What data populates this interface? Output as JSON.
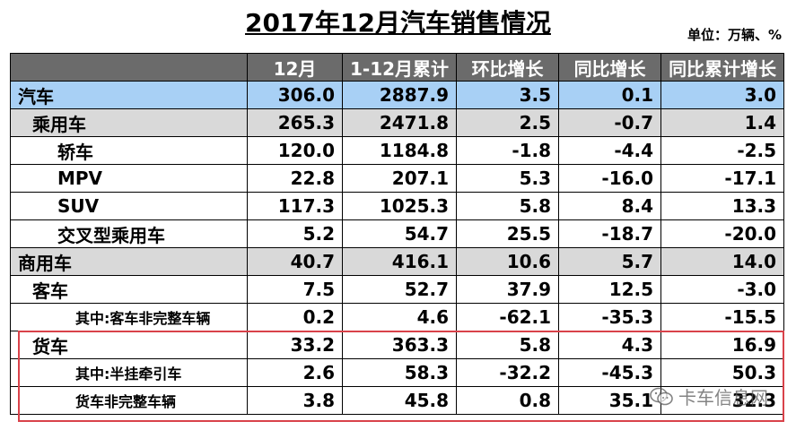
{
  "title": "2017年12月汽车销售情况",
  "unit": "单位：万辆、%",
  "table": {
    "headers": [
      "",
      "12月",
      "1-12月累计",
      "环比增长",
      "同比增长",
      "同比累计增长"
    ],
    "rows": [
      {
        "name": "汽车",
        "values": [
          "306.0",
          "2887.9",
          "3.5",
          "0.1",
          "3.0"
        ]
      },
      {
        "name": "乘用车",
        "values": [
          "265.3",
          "2471.8",
          "2.5",
          "-0.7",
          "1.4"
        ]
      },
      {
        "name": "轿车",
        "values": [
          "120.0",
          "1184.8",
          "-1.8",
          "-4.4",
          "-2.5"
        ]
      },
      {
        "name": "MPV",
        "values": [
          "22.8",
          "207.1",
          "5.3",
          "-16.0",
          "-17.1"
        ]
      },
      {
        "name": "SUV",
        "values": [
          "117.3",
          "1025.3",
          "5.8",
          "8.4",
          "13.3"
        ]
      },
      {
        "name": "交叉型乘用车",
        "values": [
          "5.2",
          "54.7",
          "25.5",
          "-18.7",
          "-20.0"
        ]
      },
      {
        "name": "商用车",
        "values": [
          "40.7",
          "416.1",
          "10.6",
          "5.7",
          "14.0"
        ]
      },
      {
        "name": "客车",
        "values": [
          "7.5",
          "52.7",
          "37.9",
          "12.5",
          "-3.0"
        ]
      },
      {
        "name": "其中:客车非完整车辆",
        "values": [
          "0.2",
          "4.6",
          "-62.1",
          "-35.3",
          "-15.5"
        ]
      },
      {
        "name": "货车",
        "values": [
          "33.2",
          "363.3",
          "5.8",
          "4.3",
          "16.9"
        ]
      },
      {
        "name": "其中:半挂牵引车",
        "values": [
          "2.6",
          "58.3",
          "-32.2",
          "-45.3",
          "50.3"
        ]
      },
      {
        "name": "货车非完整车辆",
        "values": [
          "3.8",
          "45.8",
          "0.8",
          "35.1",
          "32.3"
        ]
      }
    ]
  },
  "watermark": {
    "text": "卡车信息网",
    "icon": "wechat-icon"
  },
  "colors": {
    "header_bg": "#6b6b6b",
    "total_row_bg": "#a8d0f5",
    "group_row_bg": "#d9d9d9",
    "highlight_border": "#d9424a"
  }
}
